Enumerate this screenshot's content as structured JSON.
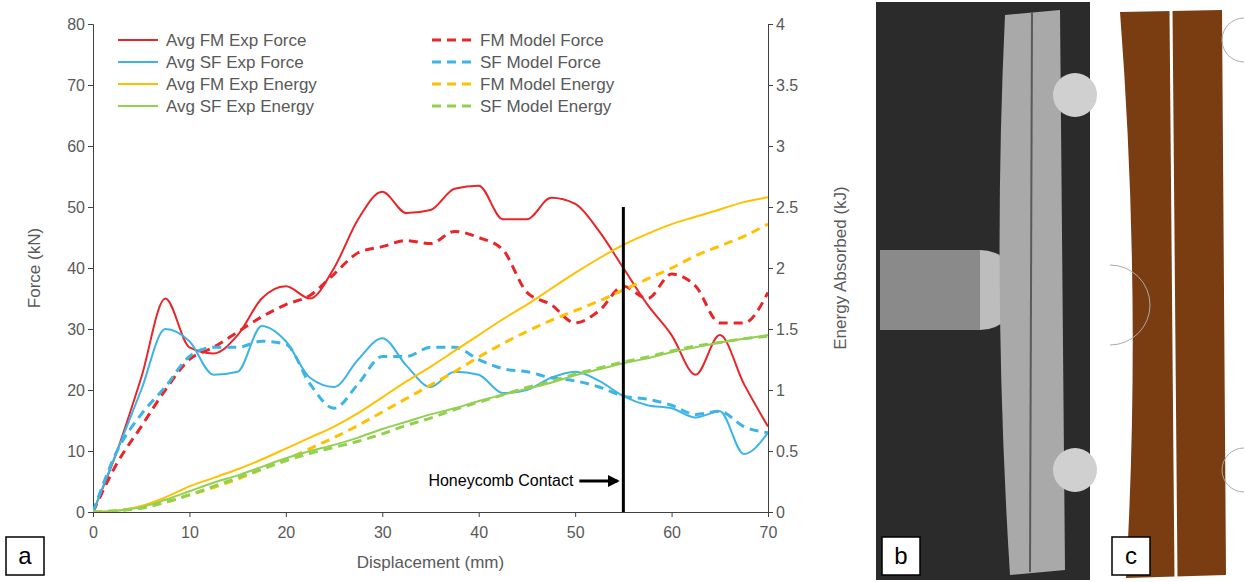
{
  "chart_data": {
    "type": "line",
    "x_label": "Displacement (mm)",
    "y_label": "Force (kN)",
    "y2_label": "Energy Absorbed (kJ)",
    "xlim": [
      0,
      70
    ],
    "xticks": [
      0,
      10,
      20,
      30,
      40,
      50,
      60,
      70
    ],
    "ylim": [
      0,
      80
    ],
    "yticks": [
      0,
      10,
      20,
      30,
      40,
      50,
      60,
      70,
      80
    ],
    "y2lim": [
      0,
      4
    ],
    "y2ticks": [
      0,
      0.5,
      1,
      1.5,
      2,
      2.5,
      3,
      3.5,
      4
    ],
    "legend": "top",
    "x": [
      0,
      2.5,
      5,
      7.5,
      10,
      12.5,
      15,
      17.5,
      20,
      22.5,
      25,
      27.5,
      30,
      32.5,
      35,
      37.5,
      40,
      42.5,
      45,
      47.5,
      50,
      52.5,
      55,
      57.5,
      60,
      62.5,
      65,
      67.5,
      70
    ],
    "series": [
      {
        "name": "Avg FM Exp Force",
        "color": "#e8262a",
        "line_style": "solid",
        "values": [
          0,
          10,
          22,
          35,
          27,
          26,
          29,
          35,
          37,
          35,
          40,
          48,
          52.5,
          49,
          49.5,
          53,
          53.5,
          48,
          48,
          51.5,
          50.5,
          46,
          40,
          34,
          29,
          22.5,
          29,
          21,
          14
        ]
      },
      {
        "name": "FM Model Force",
        "color": "#e8262a",
        "line_style": "dashed",
        "values": [
          0,
          8,
          14,
          20,
          25,
          27,
          29.5,
          32,
          34,
          35.5,
          39,
          42.5,
          43.5,
          44.5,
          44,
          46,
          45,
          43,
          36,
          34,
          31,
          33,
          37,
          35,
          39,
          37,
          31,
          31,
          36
        ]
      },
      {
        "name": "Avg SF Exp Force",
        "color": "#3cb4e5",
        "line_style": "solid",
        "values": [
          0,
          10,
          20,
          30,
          28,
          22.5,
          23,
          30.5,
          28,
          22,
          20.5,
          25,
          28.5,
          24,
          20.5,
          23,
          22.5,
          19.5,
          20,
          22,
          23,
          21.5,
          19,
          17.5,
          17,
          15.5,
          16.5,
          9.5,
          13
        ]
      },
      {
        "name": "SF Model Force",
        "color": "#3cb4e5",
        "line_style": "dashed",
        "values": [
          0,
          10,
          16,
          20.5,
          25.5,
          27,
          27,
          28,
          27.5,
          21,
          17,
          21,
          25.5,
          25.5,
          27,
          27,
          25,
          23.5,
          23,
          22,
          21.5,
          20.5,
          19,
          18.5,
          17.5,
          16,
          16.5,
          14,
          13
        ]
      },
      {
        "name": "Avg FM Exp Energy",
        "color": "#ffc000",
        "line_style": "solid",
        "axis": "y2",
        "values": [
          0,
          0.01,
          0.05,
          0.12,
          0.21,
          0.28,
          0.35,
          0.43,
          0.52,
          0.61,
          0.7,
          0.81,
          0.94,
          1.07,
          1.19,
          1.32,
          1.45,
          1.58,
          1.7,
          1.83,
          1.96,
          2.08,
          2.19,
          2.28,
          2.36,
          2.42,
          2.48,
          2.54,
          2.58
        ]
      },
      {
        "name": "FM Model Energy",
        "color": "#ffc000",
        "line_style": "dashed",
        "axis": "y2",
        "values": [
          0,
          0.01,
          0.04,
          0.08,
          0.14,
          0.2,
          0.27,
          0.35,
          0.43,
          0.52,
          0.61,
          0.71,
          0.82,
          0.93,
          1.04,
          1.15,
          1.27,
          1.38,
          1.48,
          1.57,
          1.65,
          1.73,
          1.82,
          1.91,
          2.0,
          2.1,
          2.18,
          2.26,
          2.36
        ]
      },
      {
        "name": "Avg SF Exp Energy",
        "color": "#92d050",
        "line_style": "solid",
        "axis": "y2",
        "values": [
          0,
          0.01,
          0.04,
          0.1,
          0.17,
          0.24,
          0.3,
          0.37,
          0.44,
          0.5,
          0.55,
          0.61,
          0.68,
          0.74,
          0.8,
          0.85,
          0.91,
          0.96,
          1.01,
          1.06,
          1.12,
          1.17,
          1.22,
          1.26,
          1.31,
          1.35,
          1.39,
          1.42,
          1.45
        ]
      },
      {
        "name": "SF Model Energy",
        "color": "#92d050",
        "line_style": "dashed",
        "axis": "y2",
        "values": [
          0,
          0.01,
          0.03,
          0.08,
          0.14,
          0.21,
          0.28,
          0.35,
          0.42,
          0.48,
          0.53,
          0.58,
          0.64,
          0.71,
          0.77,
          0.84,
          0.9,
          0.96,
          1.02,
          1.07,
          1.13,
          1.18,
          1.23,
          1.27,
          1.32,
          1.36,
          1.39,
          1.42,
          1.44
        ]
      }
    ],
    "annotations": [
      {
        "text": "Honeycomb Contact",
        "x": 55,
        "y": 50
      }
    ]
  },
  "panel_labels": [
    "a",
    "b",
    "c"
  ]
}
